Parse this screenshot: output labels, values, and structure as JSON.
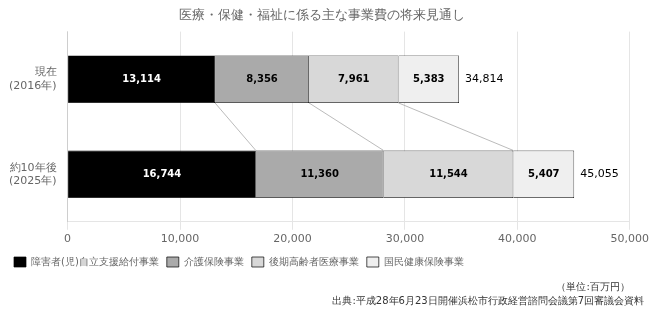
{
  "chart_data": {
    "type": "bar",
    "orientation": "horizontal",
    "stacked": true,
    "title": "医療・保健・福祉に係る主な事業費の将来見通し",
    "categories": [
      "現在\n(2016年)",
      "約10年後\n(2025年)"
    ],
    "series": [
      {
        "name": "障害者(児)自立支援給付事業",
        "color": "#000000",
        "values": [
          13114,
          16744
        ],
        "value_labels": [
          "13,114",
          "16,744"
        ]
      },
      {
        "name": "介護保険事業",
        "color": "#aaaaaa",
        "values": [
          8356,
          11360
        ],
        "value_labels": [
          "8,356",
          "11,360"
        ]
      },
      {
        "name": "後期高齢者医療事業",
        "color": "#d8d8d8",
        "values": [
          7961,
          11544
        ],
        "value_labels": [
          "7,961",
          "11,544"
        ]
      },
      {
        "name": "国民健康保険事業",
        "color": "#efefef",
        "values": [
          5383,
          5407
        ],
        "value_labels": [
          "5,383",
          "5,407"
        ]
      }
    ],
    "totals": [
      34814,
      45055
    ],
    "total_labels": [
      "34,814",
      "45,055"
    ],
    "xlim": [
      0,
      50000
    ],
    "xticks": [
      0,
      {
        "value": 10000,
        "label": "10,000"
      },
      {
        "value": 20000,
        "label": "20,000"
      },
      {
        "value": 30000,
        "label": "30,000"
      },
      {
        "value": 40000,
        "label": "40,000"
      },
      {
        "value": 50000,
        "label": "50,000"
      }
    ],
    "grid": true,
    "data_labels": true,
    "legend": "bottom",
    "annotations": [
      "（単位:百万円）",
      "出典:平成28年6月23日開催浜松市行政経営諮問会議第7回審議会資料"
    ]
  }
}
